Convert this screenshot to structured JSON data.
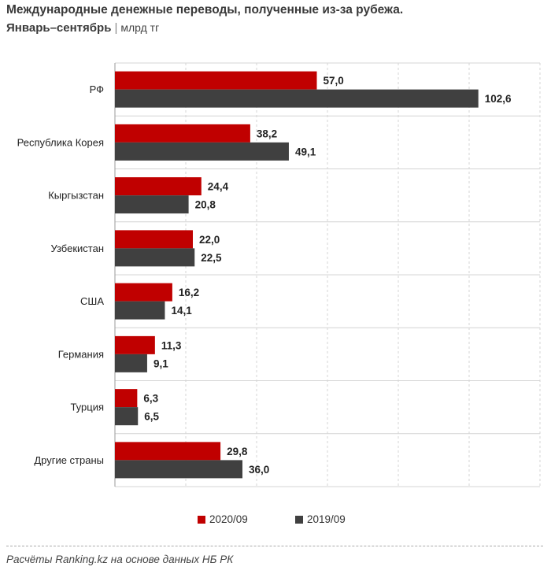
{
  "title": "Международные денежные переводы, полученные из-за рубежа.",
  "subtitle": {
    "main": "Январь–сентябрь",
    "separator": "|",
    "unit": "млрд тг"
  },
  "source": "Расчёты Ranking.kz на основе данных НБ РК",
  "colors": {
    "series_2020": "#c00000",
    "series_2019": "#404040",
    "grid": "#d4d4d4",
    "axis": "#999999"
  },
  "chart_data": {
    "type": "bar",
    "orientation": "horizontal",
    "title": "Международные денежные переводы, полученные из-за рубежа.",
    "xlabel": "",
    "ylabel": "млрд тг",
    "xlim": [
      0,
      120
    ],
    "grid": true,
    "legend_position": "bottom",
    "categories": [
      "РФ",
      "Республика Корея",
      "Кыргызстан",
      "Узбекистан",
      "США",
      "Германия",
      "Турция",
      "Другие страны"
    ],
    "series": [
      {
        "name": "2020/09",
        "values": [
          57.0,
          38.2,
          24.4,
          22.0,
          16.2,
          11.3,
          6.3,
          29.8
        ],
        "labels": [
          "57,0",
          "38,2",
          "24,4",
          "22,0",
          "16,2",
          "11,3",
          "6,3",
          "29,8"
        ]
      },
      {
        "name": "2019/09",
        "values": [
          102.6,
          49.1,
          20.8,
          22.5,
          14.1,
          9.1,
          6.5,
          36.0
        ],
        "labels": [
          "102,6",
          "49,1",
          "20,8",
          "22,5",
          "14,1",
          "9,1",
          "6,5",
          "36,0"
        ]
      }
    ]
  }
}
